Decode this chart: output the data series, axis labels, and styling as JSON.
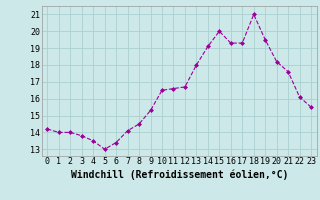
{
  "x": [
    0,
    1,
    2,
    3,
    4,
    5,
    6,
    7,
    8,
    9,
    10,
    11,
    12,
    13,
    14,
    15,
    16,
    17,
    18,
    19,
    20,
    21,
    22,
    23
  ],
  "y": [
    14.2,
    14.0,
    14.0,
    13.8,
    13.5,
    13.0,
    13.4,
    14.1,
    14.5,
    15.3,
    16.5,
    16.6,
    16.7,
    18.0,
    19.1,
    20.0,
    19.3,
    19.3,
    21.0,
    19.5,
    18.2,
    17.6,
    16.1,
    15.5
  ],
  "line_color": "#990099",
  "marker": "D",
  "marker_size": 2.0,
  "bg_color": "#cce8e8",
  "grid_color": "#aad0d0",
  "xlabel": "Windchill (Refroidissement éolien,°C)",
  "xlabel_fontsize": 7,
  "ytick_labels": [
    "13",
    "14",
    "15",
    "16",
    "17",
    "18",
    "19",
    "20",
    "21"
  ],
  "ylim": [
    12.6,
    21.5
  ],
  "xlim": [
    -0.5,
    23.5
  ],
  "xtick_labels": [
    "0",
    "1",
    "2",
    "3",
    "4",
    "5",
    "6",
    "7",
    "8",
    "9",
    "10",
    "11",
    "12",
    "13",
    "14",
    "15",
    "16",
    "17",
    "18",
    "19",
    "20",
    "21",
    "22",
    "23"
  ],
  "tick_fontsize": 6.0,
  "linewidth": 0.8
}
